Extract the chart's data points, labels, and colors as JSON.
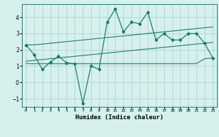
{
  "x": [
    0,
    1,
    2,
    3,
    4,
    5,
    6,
    7,
    8,
    9,
    10,
    11,
    12,
    13,
    14,
    15,
    16,
    17,
    18,
    19,
    20,
    21,
    22,
    23
  ],
  "y_main": [
    2.3,
    1.7,
    0.8,
    1.25,
    1.6,
    1.2,
    1.15,
    -1.3,
    1.0,
    0.8,
    3.7,
    4.5,
    3.1,
    3.7,
    3.6,
    4.3,
    2.6,
    3.0,
    2.6,
    2.6,
    3.0,
    3.0,
    2.4,
    1.5
  ],
  "y_upper": [
    2.3,
    2.3,
    2.35,
    2.4,
    2.45,
    2.5,
    2.55,
    2.6,
    2.65,
    2.7,
    2.75,
    2.8,
    2.85,
    2.9,
    2.95,
    3.0,
    3.05,
    3.1,
    3.15,
    3.2,
    3.25,
    3.3,
    3.35,
    3.4
  ],
  "y_mid": [
    1.3,
    1.35,
    1.4,
    1.45,
    1.5,
    1.55,
    1.6,
    1.65,
    1.7,
    1.75,
    1.8,
    1.85,
    1.9,
    1.95,
    2.0,
    2.05,
    2.1,
    2.15,
    2.2,
    2.25,
    2.3,
    2.35,
    2.4,
    2.45
  ],
  "y_lower": [
    1.15,
    1.15,
    1.15,
    1.15,
    1.15,
    1.15,
    1.15,
    1.15,
    1.15,
    1.15,
    1.15,
    1.15,
    1.15,
    1.15,
    1.15,
    1.15,
    1.15,
    1.15,
    1.15,
    1.15,
    1.15,
    1.15,
    1.45,
    1.5
  ],
  "line_color": "#1a7a6e",
  "bg_color": "#d6f0ee",
  "grid_color": "#b0d8d4",
  "xlabel": "Humidex (Indice chaleur)",
  "ylim": [
    -1.5,
    4.8
  ],
  "xlim": [
    -0.5,
    23.5
  ]
}
